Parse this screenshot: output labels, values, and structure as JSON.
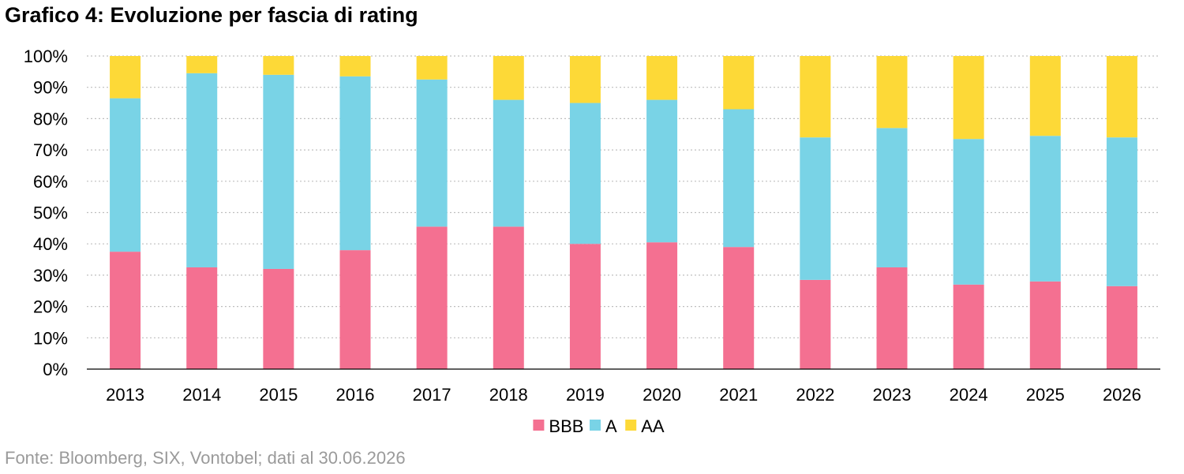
{
  "title": "Grafico 4: Evoluzione per fascia di rating",
  "source": "Fonte: Bloomberg, SIX, Vontobel; dati al 30.06.2026",
  "chart_data": {
    "type": "bar",
    "stacked": true,
    "title": "Grafico 4: Evoluzione per fascia di rating",
    "xlabel": "",
    "ylabel": "",
    "ylim": [
      0,
      100
    ],
    "y_ticks": [
      "0%",
      "10%",
      "20%",
      "30%",
      "40%",
      "50%",
      "60%",
      "70%",
      "80%",
      "90%",
      "100%"
    ],
    "grid": "horizontal dotted",
    "legend_position": "bottom",
    "categories": [
      "2013",
      "2014",
      "2015",
      "2016",
      "2017",
      "2018",
      "2019",
      "2020",
      "2021",
      "2022",
      "2023",
      "2024",
      "2025",
      "2026"
    ],
    "series": [
      {
        "name": "BBB",
        "color": "#F47091",
        "values": [
          37.5,
          32.5,
          32,
          38,
          45.5,
          45.5,
          40,
          40.5,
          39,
          28.5,
          32.5,
          27,
          28,
          26.5
        ]
      },
      {
        "name": "A",
        "color": "#79D3E6",
        "values": [
          49,
          62,
          62,
          55.5,
          47,
          40.5,
          45,
          45.5,
          44,
          45.5,
          44.5,
          46.5,
          46.5,
          47.5
        ]
      },
      {
        "name": "AA",
        "color": "#FDD937",
        "values": [
          13.5,
          5.5,
          6,
          6.5,
          7.5,
          14,
          15,
          14,
          17,
          26,
          23,
          26.5,
          25.5,
          26
        ]
      }
    ]
  }
}
